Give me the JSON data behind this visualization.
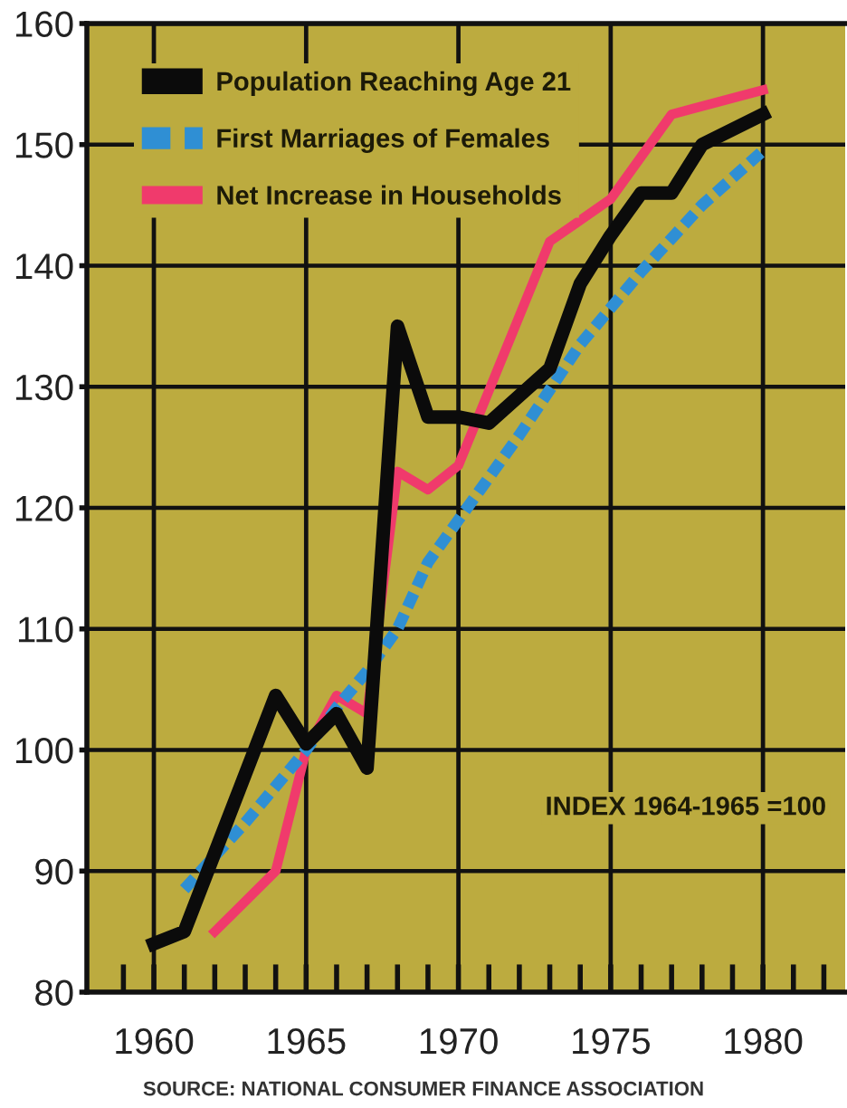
{
  "chart_data": {
    "type": "line",
    "xlim": [
      1957.8,
      1982.7
    ],
    "xticks": [
      {
        "value": 1959,
        "label": null
      },
      1960,
      {
        "value": 1961,
        "label": null
      },
      {
        "value": 1962,
        "label": null
      },
      {
        "value": 1963,
        "label": null
      },
      {
        "value": 1964,
        "label": null
      },
      1965,
      {
        "value": 1966,
        "label": null
      },
      {
        "value": 1967,
        "label": null
      },
      {
        "value": 1968,
        "label": null
      },
      {
        "value": 1969,
        "label": null
      },
      1970,
      {
        "value": 1971,
        "label": null
      },
      {
        "value": 1972,
        "label": null
      },
      {
        "value": 1973,
        "label": null
      },
      {
        "value": 1974,
        "label": null
      },
      1975,
      {
        "value": 1976,
        "label": null
      },
      {
        "value": 1977,
        "label": null
      },
      {
        "value": 1978,
        "label": null
      },
      {
        "value": 1979,
        "label": null
      },
      1980,
      {
        "value": 1981,
        "label": null
      },
      {
        "value": 1982,
        "label": null
      }
    ],
    "ylim": [
      80,
      160
    ],
    "yticks": [
      80,
      90,
      100,
      110,
      120,
      130,
      140,
      150,
      160
    ],
    "grid": true,
    "legend": "top left",
    "annotations": [
      "INDEX 1964-1965 =100",
      "SOURCE: NATIONAL CONSUMER FINANCE ASSOCIATION"
    ],
    "series": [
      {
        "name": "Population Reaching Age 21",
        "color": "#0b0b0b",
        "line_style": "solid",
        "x": [
          1960,
          1961,
          1964,
          1965,
          1966,
          1967,
          1968,
          1969,
          1970,
          1971,
          1973,
          1974,
          1975,
          1976,
          1977,
          1978,
          1980
        ],
        "values": [
          84,
          85,
          104.5,
          100.5,
          103,
          98.5,
          135,
          127.5,
          127.5,
          127,
          131.5,
          138.5,
          142.5,
          146,
          146,
          150,
          152.5
        ]
      },
      {
        "name": "First Marriages of Females",
        "color": "#2f8fd4",
        "line_style": "dashed",
        "x": [
          1961,
          1963,
          1965,
          1966,
          1967,
          1968,
          1969,
          1970,
          1972,
          1974,
          1976,
          1978,
          1980
        ],
        "values": [
          88.5,
          94,
          100,
          103.5,
          106.5,
          110,
          115.5,
          119,
          126,
          133.5,
          139.5,
          145,
          149.5
        ]
      },
      {
        "name": "Net Increase in Households",
        "color": "#f03a6c",
        "line_style": "solid",
        "x": [
          1962,
          1964,
          1965,
          1966,
          1967,
          1968,
          1969,
          1970,
          1973,
          1975,
          1977,
          1980
        ],
        "values": [
          85,
          90,
          100,
          104.5,
          103,
          123,
          121.5,
          123.5,
          142,
          145.5,
          152.5,
          154.5
        ]
      }
    ]
  }
}
